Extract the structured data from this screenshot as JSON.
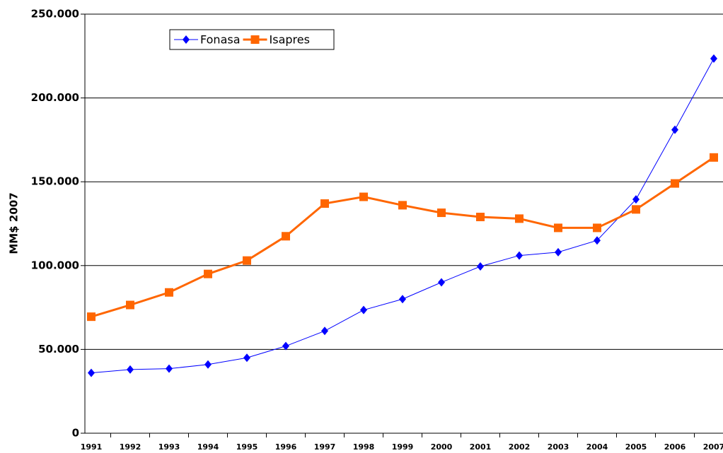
{
  "chart_data": {
    "type": "line",
    "y_label": "MM$ 2007",
    "categories": [
      "1991",
      "1992",
      "1993",
      "1994",
      "1995",
      "1996",
      "1997",
      "1998",
      "1999",
      "2000",
      "2001",
      "2002",
      "2003",
      "2004",
      "2005",
      "2006",
      "2007"
    ],
    "series": [
      {
        "name": "Fonasa",
        "color": "#0000ff",
        "marker": "diamond",
        "values": [
          36000,
          38000,
          38500,
          41000,
          45000,
          52000,
          61000,
          73500,
          80000,
          90000,
          99500,
          106000,
          108000,
          115000,
          139500,
          181000,
          223500
        ]
      },
      {
        "name": "Isapres",
        "color": "#ff6600",
        "marker": "square",
        "values": [
          69500,
          76500,
          84000,
          95000,
          103000,
          117500,
          137000,
          141000,
          136000,
          131500,
          129000,
          128000,
          122500,
          122500,
          133500,
          149000,
          164500
        ]
      }
    ],
    "ylim": [
      0,
      250000
    ],
    "yticks": [
      0,
      {
        "value": 50000,
        "label": "50.000"
      },
      {
        "value": 100000,
        "label": "100.000"
      },
      {
        "value": 150000,
        "label": "150.000"
      },
      {
        "value": 200000,
        "label": "200.000"
      },
      {
        "value": 250000,
        "label": "250.000"
      }
    ],
    "grid": true,
    "legend": "top-left"
  }
}
